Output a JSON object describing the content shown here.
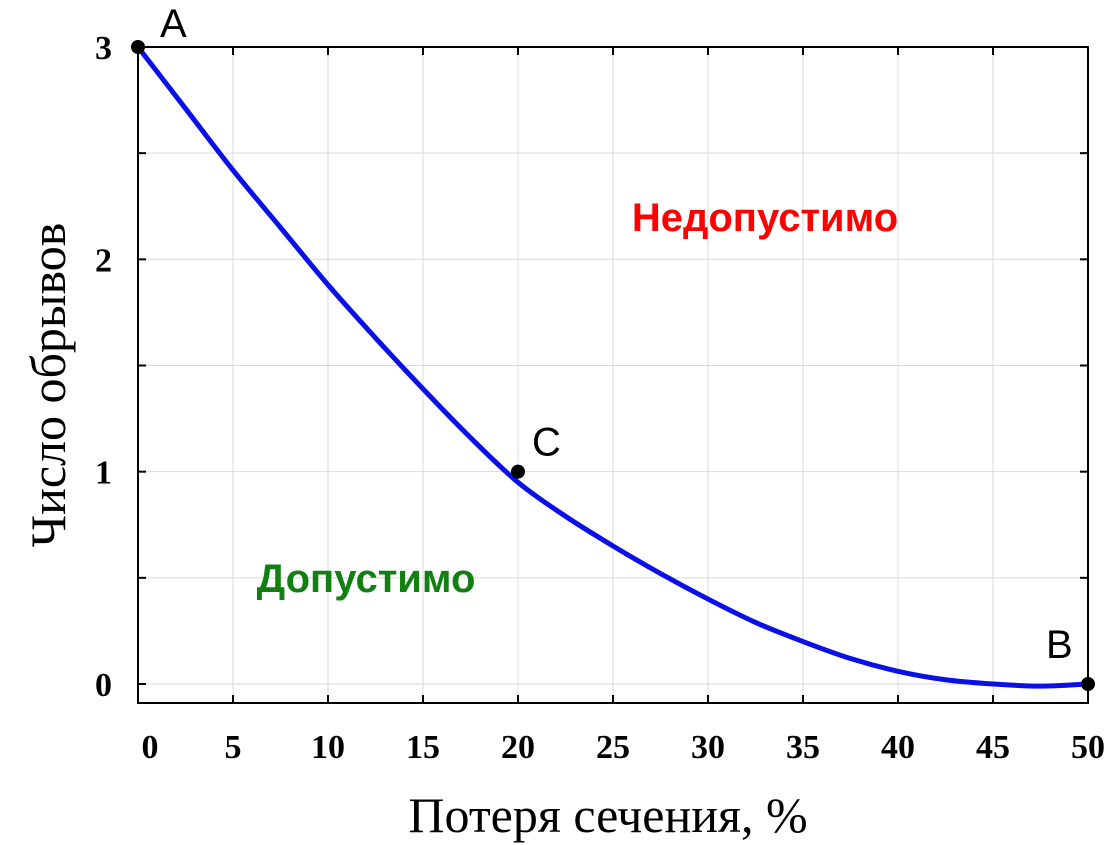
{
  "chart_data": {
    "type": "line",
    "xlabel": "Потеря сечения, %",
    "ylabel": "Число обрывов",
    "xlim": [
      0,
      50
    ],
    "ylim": [
      0,
      3
    ],
    "x_ticks": [
      0,
      5,
      10,
      15,
      20,
      25,
      30,
      35,
      40,
      45,
      50
    ],
    "y_ticks": [
      0,
      1,
      2,
      3
    ],
    "y_minor_ticks": [
      0.5,
      1.5,
      2.5
    ],
    "grid": true,
    "series": [
      {
        "color": "#0a10e6",
        "x": [
          0,
          2.5,
          5,
          7.5,
          10,
          12.5,
          15,
          17.5,
          20,
          22.5,
          25,
          27.5,
          30,
          32.5,
          35,
          37.5,
          40,
          42.5,
          45,
          47.5,
          50
        ],
        "y": [
          3.0,
          2.71,
          2.42,
          2.15,
          1.88,
          1.63,
          1.39,
          1.16,
          0.95,
          0.79,
          0.65,
          0.52,
          0.4,
          0.29,
          0.2,
          0.12,
          0.06,
          0.02,
          0.0,
          -0.01,
          0.0
        ]
      }
    ],
    "points": [
      {
        "label": "A",
        "x": 0,
        "y": 3
      },
      {
        "label": "C",
        "x": 20,
        "y": 1
      },
      {
        "label": "B",
        "x": 50,
        "y": 0
      }
    ],
    "annotations": [
      {
        "text": "Недопустимо",
        "color": "#ff0000",
        "x": 33,
        "y": 2.2
      },
      {
        "text": "Допустимо",
        "color": "#118011",
        "x": 12,
        "y": 0.5
      }
    ]
  }
}
